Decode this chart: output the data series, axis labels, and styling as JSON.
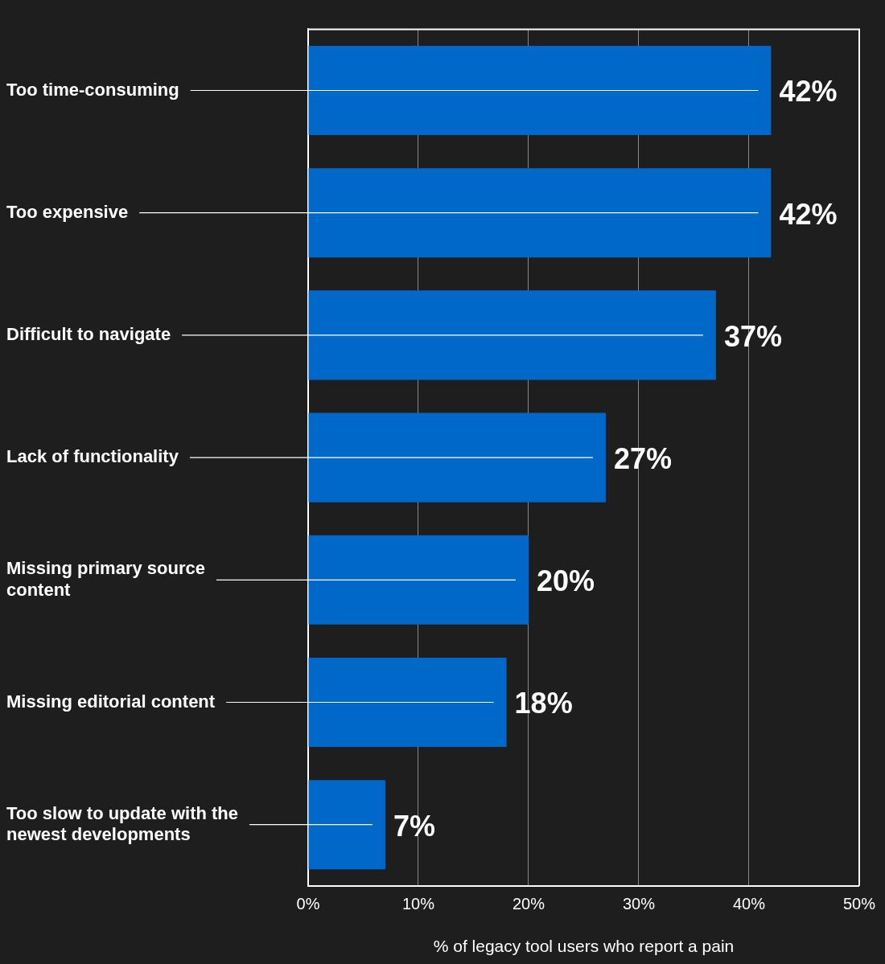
{
  "chart_data": {
    "type": "bar",
    "orientation": "horizontal",
    "xlabel": "% of legacy tool users who report a pain",
    "categories": [
      "Too time-consuming",
      "Too expensive",
      "Difficult to navigate",
      "Lack of functionality",
      "Missing primary source content",
      "Missing editorial content",
      "Too slow to update with the newest developments"
    ],
    "values": [
      42,
      42,
      37,
      27,
      20,
      18,
      7
    ],
    "value_labels": [
      "42%",
      "42%",
      "37%",
      "27%",
      "20%",
      "18%",
      "7%"
    ],
    "color": "#0068c9",
    "xlim": [
      0,
      50
    ],
    "xticks": [
      {
        "value": 0,
        "label": "0%"
      },
      {
        "value": 10,
        "label": "10%"
      },
      {
        "value": 20,
        "label": "20%"
      },
      {
        "value": 30,
        "label": "30%"
      },
      {
        "value": 40,
        "label": "40%"
      },
      {
        "value": 50,
        "label": "50%"
      }
    ],
    "grid": "x",
    "legend": false
  }
}
